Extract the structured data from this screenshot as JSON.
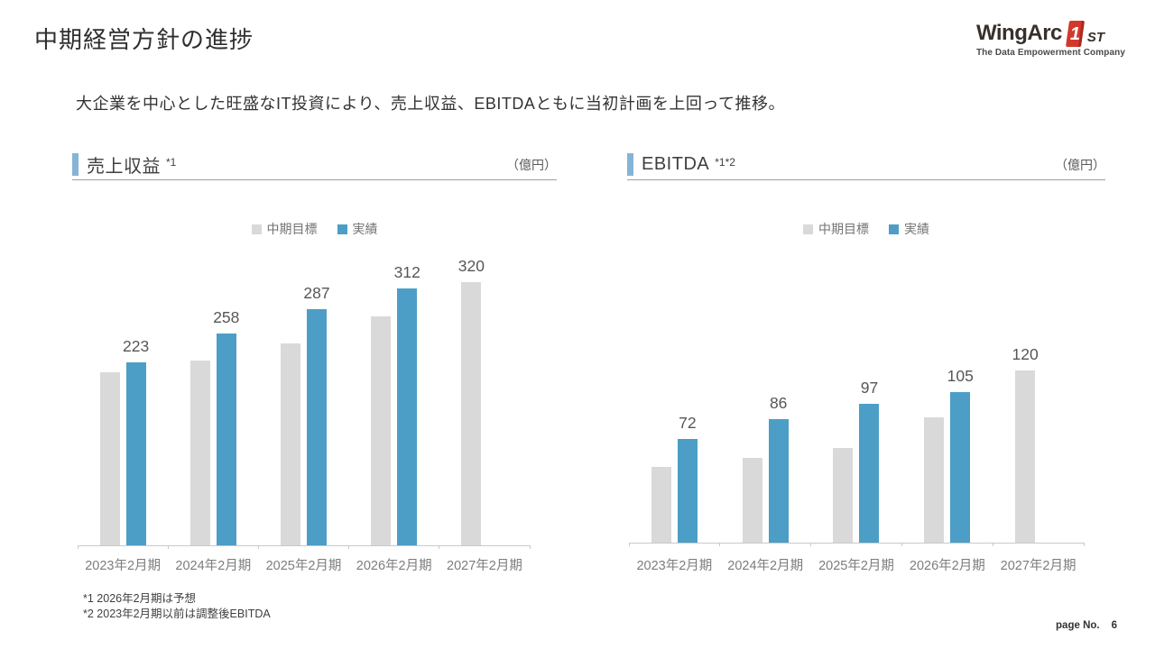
{
  "slide": {
    "title": "中期経営方針の進捗",
    "subtitle": "大企業を中心とした旺盛なIT投資により、売上収益、EBITDAともに当初計画を上回って推移。",
    "footnote1": "*1 2026年2月期は予想",
    "footnote2": "*2 2023年2月期以前は調整後EBITDA",
    "page_label": "page No.",
    "page_number": "6"
  },
  "logo": {
    "brand": "WingArc",
    "one": "1",
    "st": "ST",
    "tagline": "The Data Empowerment Company"
  },
  "colors": {
    "target_gray": "#d9d9d9",
    "actual_blue": "#4c9ec6",
    "accent_blue": "#85b4d6",
    "logo_red": "#d2392c"
  },
  "chart_data": [
    {
      "type": "bar",
      "title": "売上収益",
      "title_note": "*1",
      "unit": "（億円）",
      "grid": false,
      "y_axis_visible": false,
      "legend_position": "top",
      "categories": [
        "2023年2月期",
        "2024年2月期",
        "2025年2月期",
        "2026年2月期",
        "2027年2月期"
      ],
      "series": [
        {
          "name": "中期目標",
          "color": "#d9d9d9",
          "values": [
            210,
            225,
            245,
            278,
            320
          ],
          "labels": [
            null,
            null,
            null,
            null,
            "320"
          ]
        },
        {
          "name": "実績",
          "color": "#4c9ec6",
          "values": [
            223,
            258,
            287,
            312,
            null
          ],
          "labels": [
            "223",
            "258",
            "287",
            "312",
            null
          ]
        }
      ]
    },
    {
      "type": "bar",
      "title": "EBITDA",
      "title_note": "*1*2",
      "unit": "（億円）",
      "grid": false,
      "y_axis_visible": false,
      "legend_position": "top",
      "categories": [
        "2023年2月期",
        "2024年2月期",
        "2025年2月期",
        "2026年2月期",
        "2027年2月期"
      ],
      "series": [
        {
          "name": "中期目標",
          "color": "#d9d9d9",
          "values": [
            53,
            59,
            66,
            87,
            120
          ],
          "labels": [
            null,
            null,
            null,
            null,
            "120"
          ]
        },
        {
          "name": "実績",
          "color": "#4c9ec6",
          "values": [
            72,
            86,
            97,
            105,
            null
          ],
          "labels": [
            "72",
            "86",
            "97",
            "105",
            null
          ]
        }
      ]
    }
  ]
}
